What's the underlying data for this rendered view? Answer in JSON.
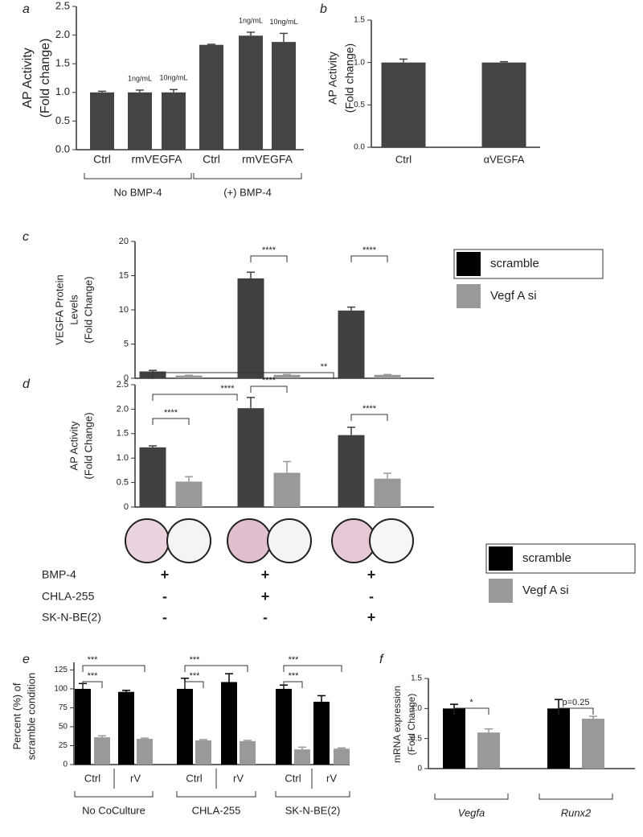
{
  "chart_data": [
    {
      "panel": "a",
      "type": "bar",
      "ylabel": [
        "AP Activity",
        "(Fold change)"
      ],
      "ylim": [
        0,
        2.5
      ],
      "yticks": [
        {
          "value": 0,
          "label": "0.0"
        },
        0.5,
        {
          "value": 1,
          "label": "1.0"
        },
        1.5,
        {
          "value": 2,
          "label": "2.0"
        },
        2.5
      ],
      "colors": [
        "#444444"
      ],
      "groups": [
        {
          "name": "No BMP-4",
          "items": [
            {
              "name": "Ctrl",
              "values": [
                1.0
              ],
              "errors": [
                0.02
              ]
            },
            {
              "name": "rmVEGFA",
              "values": [
                1.0,
                1.0
              ],
              "errors": [
                0.04,
                0.05
              ],
              "bar_labels": [
                "1ng/mL",
                "10ng/mL"
              ]
            }
          ]
        },
        {
          "name": "(+) BMP-4",
          "items": [
            {
              "name": "Ctrl",
              "values": [
                1.83
              ],
              "errors": [
                0.01
              ]
            },
            {
              "name": "rmVEGFA",
              "values": [
                1.99,
                1.88
              ],
              "errors": [
                0.06,
                0.15
              ],
              "bar_labels": [
                "1ng/mL",
                "10ng/mL"
              ]
            }
          ]
        }
      ]
    },
    {
      "panel": "b",
      "type": "bar",
      "ylabel": [
        "AP Activity",
        "(Fold change)"
      ],
      "ylim": [
        0,
        1.5
      ],
      "yticks": [
        {
          "value": 0,
          "label": "0.0"
        },
        0.5,
        {
          "value": 1,
          "label": "1.0"
        },
        1.5
      ],
      "colors": [
        "#444444"
      ],
      "groups": [
        {
          "items": [
            {
              "name": "Ctrl",
              "values": [
                1.0
              ],
              "errors": [
                0.04
              ]
            },
            {
              "name": "αVEGFA",
              "values": [
                1.0
              ],
              "errors": [
                0.01
              ]
            }
          ]
        }
      ]
    },
    {
      "panel": "c",
      "type": "bar",
      "ylabel": [
        "VEGFA Protein",
        "Levels",
        "(Fold Change)"
      ],
      "ylim": [
        0,
        20
      ],
      "yticks": [
        0,
        5,
        10,
        15,
        20
      ],
      "colors": [
        "#404040",
        "#999999"
      ],
      "groups": [
        {
          "items": [
            {
              "values": [
                1.0,
                0.4
              ],
              "errors": [
                0.15,
                0.05
              ]
            }
          ]
        },
        {
          "items": [
            {
              "values": [
                14.6,
                0.5
              ],
              "errors": [
                0.9,
                0.05
              ]
            }
          ]
        },
        {
          "items": [
            {
              "values": [
                9.9,
                0.5
              ],
              "errors": [
                0.5,
                0.05
              ]
            }
          ]
        }
      ],
      "brackets": [
        {
          "label": "****"
        },
        {
          "label": "****"
        }
      ],
      "legend": [
        {
          "name": "scramble",
          "color": "#000000"
        },
        {
          "name": "Vegf A si",
          "color": "#999999"
        }
      ]
    },
    {
      "panel": "d",
      "type": "bar",
      "ylabel": [
        "AP Activity",
        "(Fold Change)"
      ],
      "ylim": [
        0,
        2.5
      ],
      "yticks": [
        0,
        0.5,
        {
          "value": 1,
          "label": "1.0"
        },
        1.5,
        {
          "value": 2,
          "label": "2.0"
        },
        2.5
      ],
      "colors": [
        "#404040",
        "#999999"
      ],
      "groups": [
        {
          "items": [
            {
              "values": [
                1.22,
                0.52
              ],
              "errors": [
                0.03,
                0.1
              ]
            }
          ]
        },
        {
          "items": [
            {
              "values": [
                2.02,
                0.7
              ],
              "errors": [
                0.22,
                0.23
              ]
            }
          ]
        },
        {
          "items": [
            {
              "values": [
                1.47,
                0.58
              ],
              "errors": [
                0.16,
                0.11
              ]
            }
          ]
        }
      ],
      "brackets": [
        {
          "label": "**"
        },
        {
          "label": "****"
        },
        {
          "label": "****"
        },
        {
          "label": "****"
        },
        {
          "label": "****"
        }
      ],
      "conditions": [
        {
          "name": "BMP-4",
          "marks": [
            "+",
            "+",
            "+"
          ]
        },
        {
          "name": "CHLA-255",
          "marks": [
            "-",
            "+",
            "-"
          ]
        },
        {
          "name": "SK-N-BE(2)",
          "marks": [
            "-",
            "-",
            "+"
          ]
        }
      ],
      "legend": [
        {
          "name": "scramble",
          "color": "#000000"
        },
        {
          "name": "Vegf A si",
          "color": "#999999"
        }
      ]
    },
    {
      "panel": "e",
      "type": "bar",
      "ylabel": [
        "Percent (%) of",
        "scramble condition"
      ],
      "ylim": [
        0,
        135
      ],
      "yticks": [
        0,
        25,
        50,
        75,
        100,
        125
      ],
      "colors": [
        "#000000",
        "#999999"
      ],
      "groups": [
        {
          "name": "No CoCulture",
          "items": [
            {
              "name": "Ctrl",
              "values": [
                100,
                36
              ],
              "errors": [
                7,
                2
              ]
            },
            {
              "name": "rV",
              "values": [
                96,
                34
              ],
              "errors": [
                2,
                1
              ]
            }
          ]
        },
        {
          "name": "CHLA-255",
          "items": [
            {
              "name": "Ctrl",
              "values": [
                100,
                32
              ],
              "errors": [
                14,
                1
              ]
            },
            {
              "name": "rV",
              "values": [
                109,
                31
              ],
              "errors": [
                11,
                1
              ]
            }
          ]
        },
        {
          "name": "SK-N-BE(2)",
          "items": [
            {
              "name": "Ctrl",
              "values": [
                100,
                20
              ],
              "errors": [
                5,
                3
              ]
            },
            {
              "name": "rV",
              "values": [
                83,
                21
              ],
              "errors": [
                8,
                1
              ]
            }
          ]
        }
      ],
      "brackets": [
        {
          "label": "***"
        },
        {
          "label": "***"
        },
        {
          "label": "***"
        },
        {
          "label": "***"
        },
        {
          "label": "***"
        },
        {
          "label": "***"
        }
      ]
    },
    {
      "panel": "f",
      "type": "bar",
      "ylabel": [
        "mRNA expression",
        "(Fold Change)"
      ],
      "ylim": [
        0,
        1.5
      ],
      "yticks": [
        0,
        0.5,
        {
          "value": 1,
          "label": "1.0"
        },
        1.5
      ],
      "colors": [
        "#000000",
        "#999999"
      ],
      "groups": [
        {
          "name": "Vegfa",
          "items": [
            {
              "values": [
                1.0,
                0.6
              ],
              "errors": [
                0.07,
                0.06
              ]
            }
          ]
        },
        {
          "name": "Runx2",
          "items": [
            {
              "values": [
                1.0,
                0.83
              ],
              "errors": [
                0.15,
                0.04
              ]
            }
          ]
        }
      ],
      "brackets": [
        {
          "label": "*"
        },
        {
          "label": "p=0.25"
        }
      ]
    }
  ]
}
